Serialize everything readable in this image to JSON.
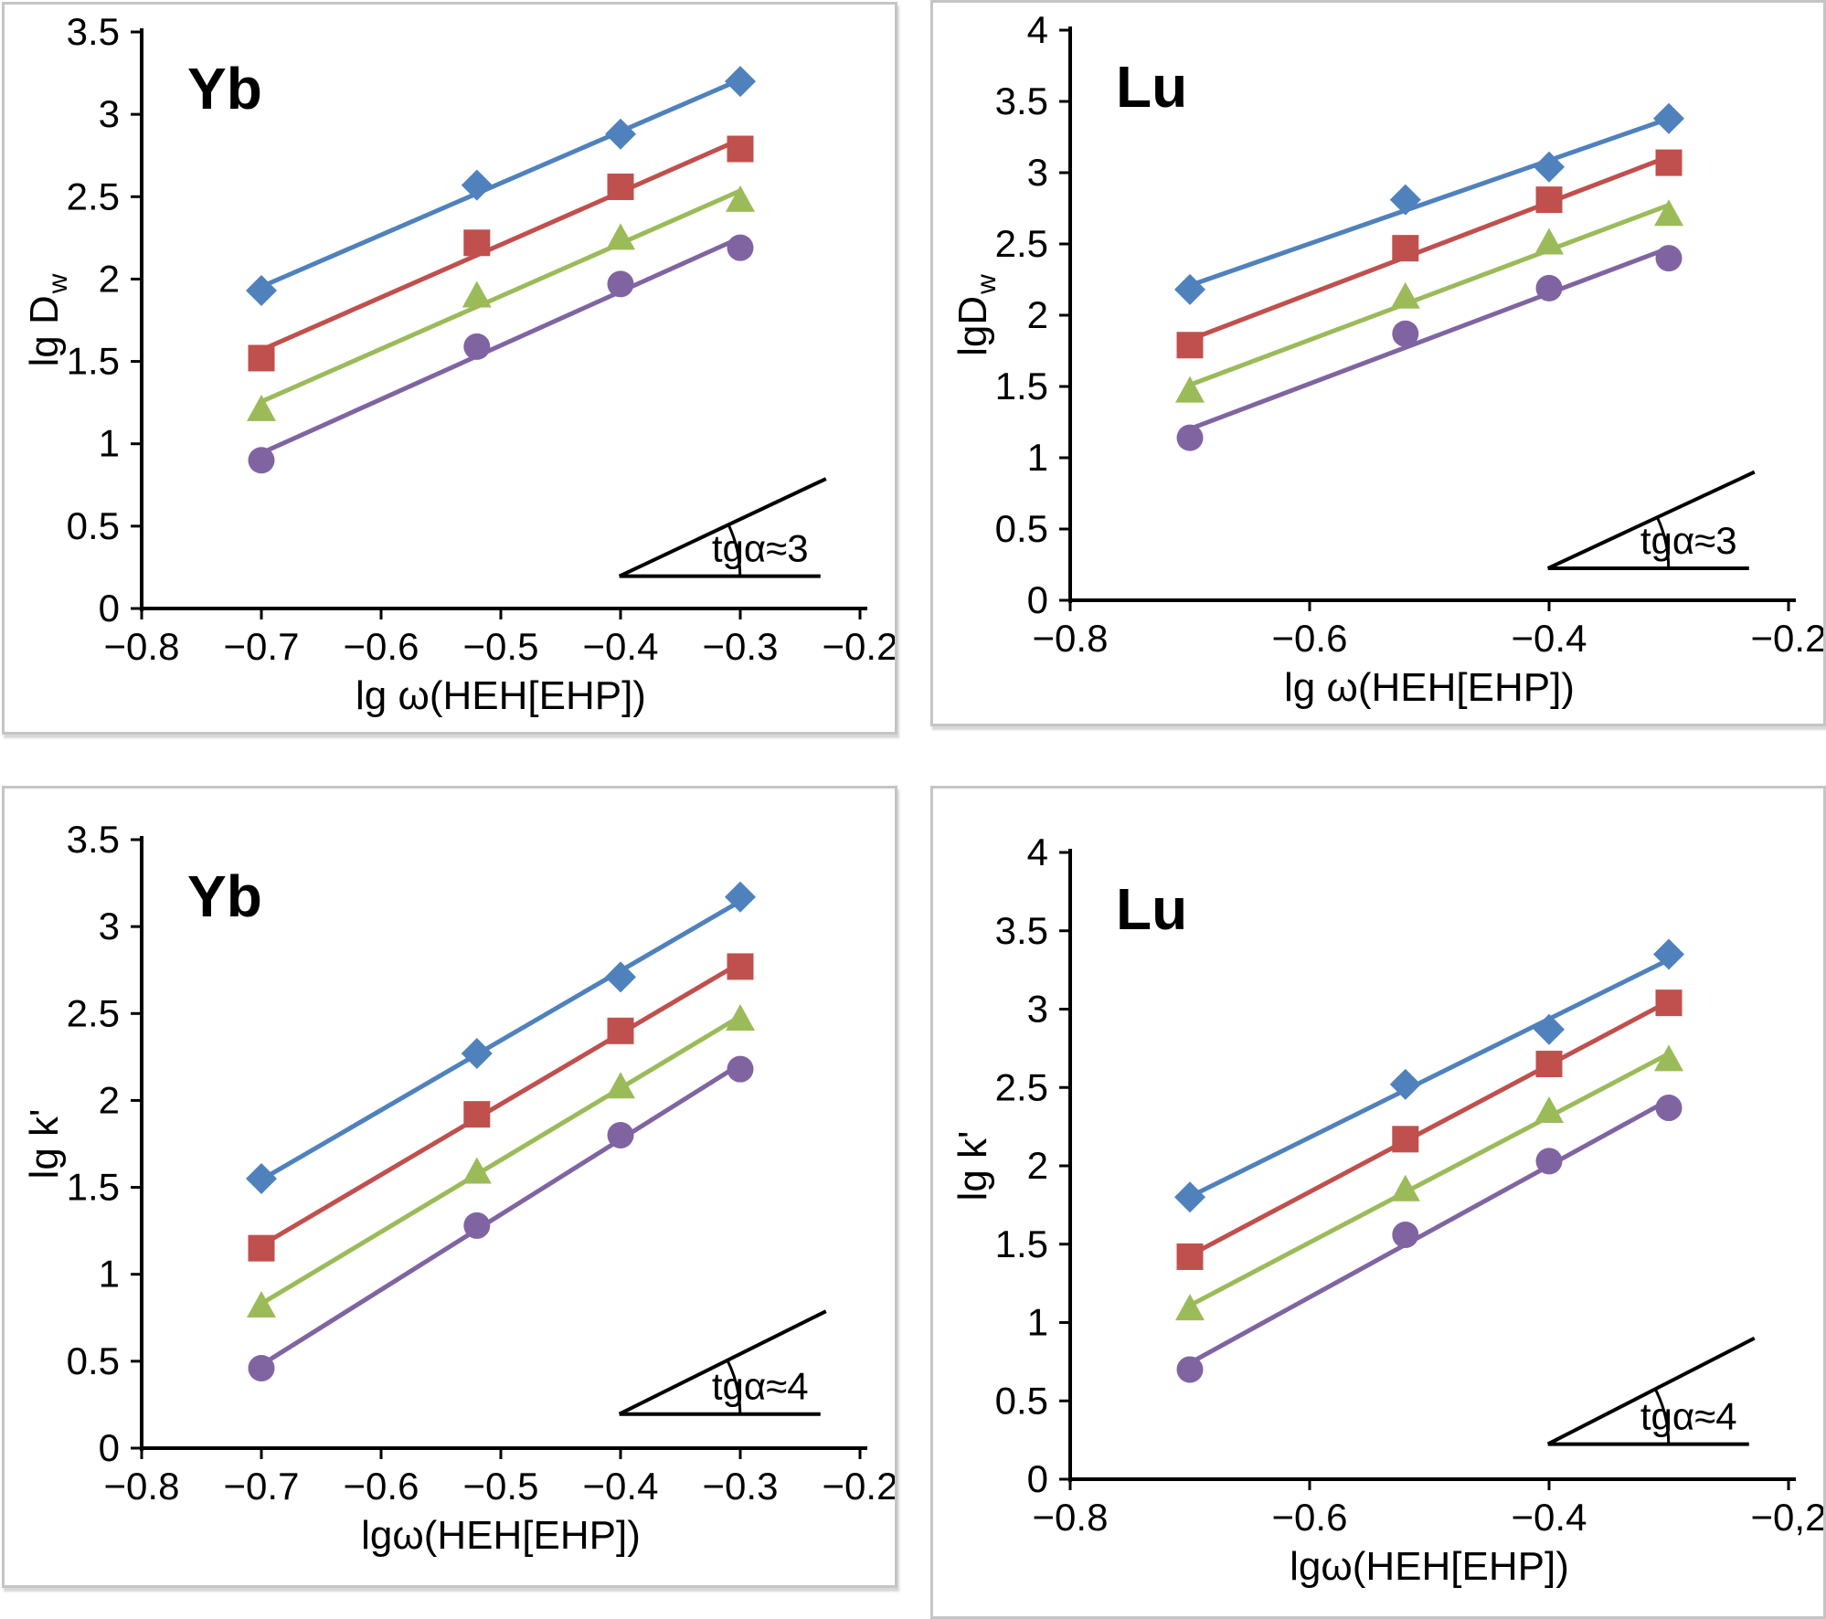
{
  "page": {
    "background": "#ffffff",
    "panel_border_color": "#c5c5c5",
    "axis_color": "#000000"
  },
  "chart_data": [
    {
      "type": "scatter",
      "panel": "top-left",
      "title": "Yb",
      "xlabel": "lg ω(HEH[EHP])",
      "ylabel_main": "lg D",
      "ylabel_sub": "w",
      "annotation_label": "tgα≈3",
      "xlim": [
        -0.8,
        -0.2
      ],
      "ylim": [
        0,
        3.5
      ],
      "grid": false,
      "legend": "none",
      "x_ticks": {
        "values": [
          -0.8,
          -0.7,
          -0.6,
          -0.5,
          -0.4,
          -0.3,
          -0.2
        ],
        "labels": [
          "−0.8",
          "−0.7",
          "−0.6",
          "−0.5",
          "−0.4",
          "−0.3",
          "−0.2"
        ]
      },
      "y_ticks": {
        "values": [
          0,
          0.5,
          1,
          1.5,
          2,
          2.5,
          3,
          3.5
        ],
        "labels": [
          "0",
          "0.5",
          "1",
          "1.5",
          "2",
          "2.5",
          "3",
          "3.5"
        ]
      },
      "x": [
        -0.7,
        -0.52,
        -0.4,
        -0.3
      ],
      "series": [
        {
          "name": "diamond-series",
          "marker": "diamond",
          "color": "#4F81BD",
          "values": [
            1.93,
            2.57,
            2.88,
            3.2
          ]
        },
        {
          "name": "square-series",
          "marker": "square",
          "color": "#C0504D",
          "values": [
            1.52,
            2.22,
            2.56,
            2.79
          ]
        },
        {
          "name": "triangle-series",
          "marker": "triangle",
          "color": "#9BBB59",
          "values": [
            1.21,
            1.9,
            2.25,
            2.48
          ]
        },
        {
          "name": "circle-series",
          "marker": "circle",
          "color": "#8064A2",
          "values": [
            0.9,
            1.59,
            1.97,
            2.19
          ]
        }
      ]
    },
    {
      "type": "scatter",
      "panel": "top-right",
      "title": "Lu",
      "xlabel": "lg ω(HEH[EHP])",
      "ylabel_main": "lgD",
      "ylabel_sub": "w",
      "annotation_label": "tgα≈3",
      "xlim": [
        -0.8,
        -0.2
      ],
      "ylim": [
        0,
        4
      ],
      "grid": false,
      "legend": "none",
      "x_ticks": {
        "values": [
          -0.8,
          -0.6,
          -0.4,
          -0.2
        ],
        "labels": [
          "−0.8",
          "−0.6",
          "−0.4",
          "−0.2"
        ]
      },
      "y_ticks": {
        "values": [
          0,
          0.5,
          1,
          1.5,
          2,
          2.5,
          3,
          3.5,
          4
        ],
        "labels": [
          "0",
          "0.5",
          "1",
          "1.5",
          "2",
          "2.5",
          "3",
          "3.5",
          "4"
        ]
      },
      "x": [
        -0.7,
        -0.52,
        -0.4,
        -0.3
      ],
      "series": [
        {
          "name": "diamond-series",
          "marker": "diamond",
          "color": "#4F81BD",
          "values": [
            2.18,
            2.81,
            3.04,
            3.38
          ]
        },
        {
          "name": "square-series",
          "marker": "square",
          "color": "#C0504D",
          "values": [
            1.79,
            2.47,
            2.81,
            3.07
          ]
        },
        {
          "name": "triangle-series",
          "marker": "triangle",
          "color": "#9BBB59",
          "values": [
            1.47,
            2.13,
            2.51,
            2.71
          ]
        },
        {
          "name": "circle-series",
          "marker": "circle",
          "color": "#8064A2",
          "values": [
            1.14,
            1.87,
            2.19,
            2.4
          ]
        }
      ]
    },
    {
      "type": "scatter",
      "panel": "bottom-left",
      "title": "Yb",
      "xlabel": "lgω(HEH[EHP])",
      "ylabel_main": "lg k'",
      "ylabel_sub": "",
      "annotation_label": "tgα≈4",
      "xlim": [
        -0.8,
        -0.2
      ],
      "ylim": [
        0,
        3.5
      ],
      "grid": false,
      "legend": "none",
      "x_ticks": {
        "values": [
          -0.8,
          -0.7,
          -0.6,
          -0.5,
          -0.4,
          -0.3,
          -0.2
        ],
        "labels": [
          "−0.8",
          "−0.7",
          "−0.6",
          "−0.5",
          "−0.4",
          "−0.3",
          "−0.2"
        ]
      },
      "y_ticks": {
        "values": [
          0,
          0.5,
          1,
          1.5,
          2,
          2.5,
          3,
          3.5
        ],
        "labels": [
          "0",
          "0.5",
          "1",
          "1.5",
          "2",
          "2.5",
          "3",
          "3.5"
        ]
      },
      "x": [
        -0.7,
        -0.52,
        -0.4,
        -0.3
      ],
      "series": [
        {
          "name": "diamond-series",
          "marker": "diamond",
          "color": "#4F81BD",
          "values": [
            1.55,
            2.27,
            2.71,
            3.17
          ]
        },
        {
          "name": "square-series",
          "marker": "square",
          "color": "#C0504D",
          "values": [
            1.15,
            1.92,
            2.4,
            2.77
          ]
        },
        {
          "name": "triangle-series",
          "marker": "triangle",
          "color": "#9BBB59",
          "values": [
            0.82,
            1.59,
            2.08,
            2.47
          ]
        },
        {
          "name": "circle-series",
          "marker": "circle",
          "color": "#8064A2",
          "values": [
            0.46,
            1.28,
            1.8,
            2.18
          ]
        }
      ]
    },
    {
      "type": "scatter",
      "panel": "bottom-right",
      "title": "Lu",
      "xlabel": "lgω(HEH[EHP])",
      "ylabel_main": "lg k'",
      "ylabel_sub": "",
      "annotation_label": "tgα≈4",
      "xlim": [
        -0.8,
        -0.2
      ],
      "ylim": [
        0,
        4
      ],
      "grid": false,
      "legend": "none",
      "x_ticks": {
        "values": [
          -0.8,
          -0.6,
          -0.4,
          -0.2
        ],
        "labels": [
          "−0.8",
          "−0.6",
          "−0.4",
          "−0,2"
        ]
      },
      "y_ticks": {
        "values": [
          0,
          0.5,
          1,
          1.5,
          2,
          2.5,
          3,
          3.5,
          4
        ],
        "labels": [
          "0",
          "0.5",
          "1",
          "1.5",
          "2",
          "2.5",
          "3",
          "3.5",
          "4"
        ]
      },
      "x": [
        -0.7,
        -0.52,
        -0.4,
        -0.3
      ],
      "series": [
        {
          "name": "diamond-series",
          "marker": "diamond",
          "color": "#4F81BD",
          "values": [
            1.8,
            2.52,
            2.87,
            3.35
          ]
        },
        {
          "name": "square-series",
          "marker": "square",
          "color": "#C0504D",
          "values": [
            1.42,
            2.17,
            2.65,
            3.04
          ]
        },
        {
          "name": "triangle-series",
          "marker": "triangle",
          "color": "#9BBB59",
          "values": [
            1.09,
            1.85,
            2.35,
            2.68
          ]
        },
        {
          "name": "circle-series",
          "marker": "circle",
          "color": "#8064A2",
          "values": [
            0.7,
            1.56,
            2.03,
            2.37
          ]
        }
      ]
    }
  ]
}
